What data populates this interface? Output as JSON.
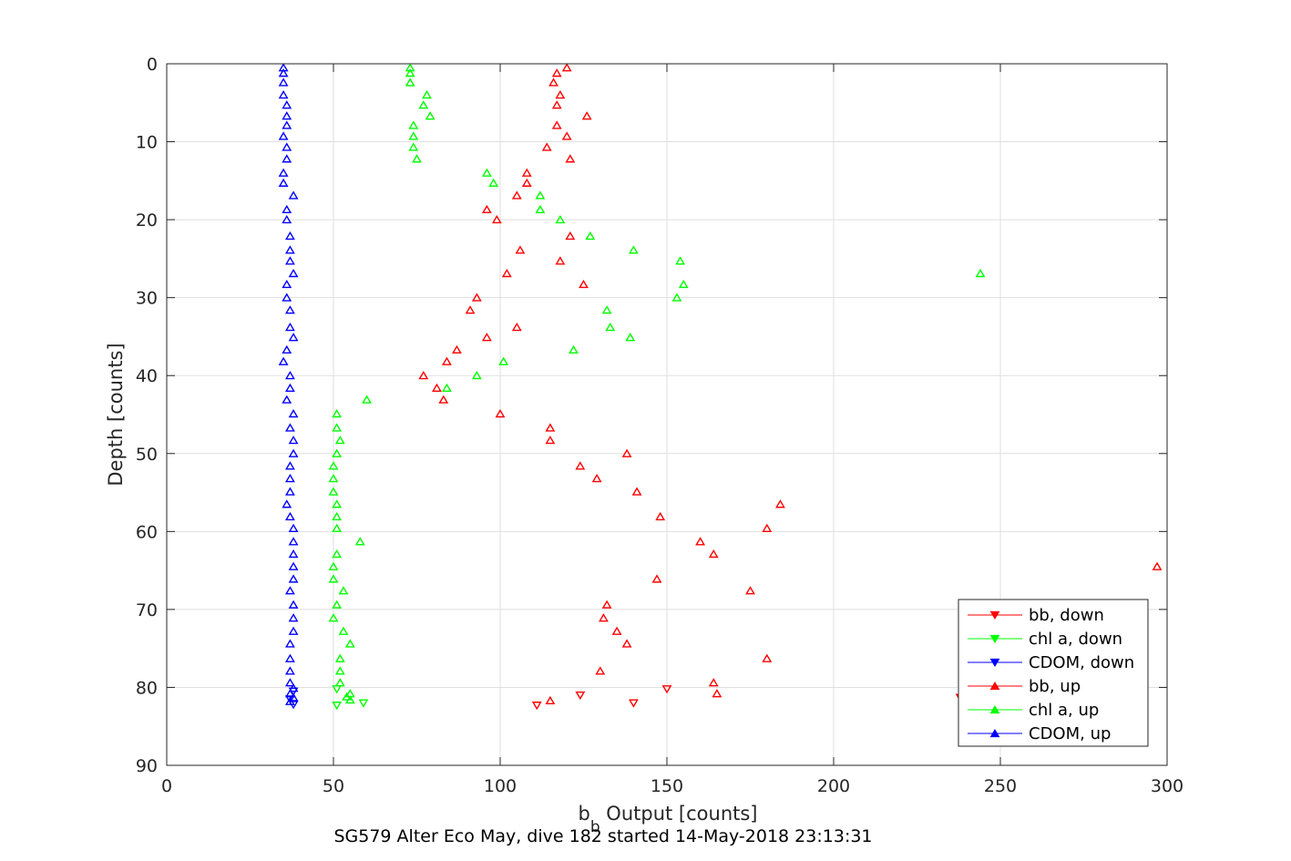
{
  "chart_data": {
    "type": "scatter",
    "xlabel_main": "b",
    "xlabel_sub": "b",
    "xlabel_rest": " Output [counts]",
    "ylabel": "Depth [counts]",
    "caption": "SG579 Alter Eco May, dive 182 started 14-May-2018 23:13:31",
    "xlim": [
      0,
      300
    ],
    "ylim": [
      0,
      90
    ],
    "y_reversed": true,
    "grid": true,
    "legend_position": "bottom-right",
    "x_ticks": [
      0,
      50,
      100,
      150,
      200,
      250,
      300
    ],
    "x_tick_labels": [
      "0",
      "50",
      "100",
      "150",
      "200",
      "250",
      "300"
    ],
    "y_ticks": [
      0,
      10,
      20,
      30,
      40,
      50,
      60,
      70,
      80,
      90
    ],
    "y_tick_labels": [
      "0",
      "10",
      "20",
      "30",
      "40",
      "50",
      "60",
      "70",
      "80",
      "90"
    ],
    "colors": {
      "bb": "#ff0000",
      "chl": "#00ff00",
      "cdom": "#0000ff"
    },
    "series": [
      {
        "name": "bb, down",
        "color": "#ff0000",
        "marker": "triangle-down",
        "points": [
          [
            140,
            82
          ],
          [
            111,
            82.3
          ],
          [
            150,
            80.2
          ],
          [
            124,
            81
          ],
          [
            238,
            81.3
          ]
        ]
      },
      {
        "name": "chl a, down",
        "color": "#00ff00",
        "marker": "triangle-down",
        "points": [
          [
            51,
            82.3
          ],
          [
            59,
            82
          ],
          [
            51,
            80.2
          ]
        ]
      },
      {
        "name": "CDOM, down",
        "color": "#0000ff",
        "marker": "triangle-down",
        "points": [
          [
            38,
            82.2
          ],
          [
            37,
            81.5
          ],
          [
            38,
            80.5
          ]
        ]
      },
      {
        "name": "bb, up",
        "color": "#ff0000",
        "marker": "triangle-up",
        "points": [
          [
            120,
            0.5
          ],
          [
            117,
            1.2
          ],
          [
            116,
            2.4
          ],
          [
            118,
            4
          ],
          [
            117,
            5.3
          ],
          [
            126,
            6.7
          ],
          [
            117,
            7.9
          ],
          [
            120,
            9.3
          ],
          [
            114,
            10.7
          ],
          [
            121,
            12.2
          ],
          [
            108,
            14
          ],
          [
            108,
            15.3
          ],
          [
            105,
            16.9
          ],
          [
            96,
            18.7
          ],
          [
            99,
            20
          ],
          [
            121,
            22.1
          ],
          [
            106,
            23.9
          ],
          [
            118,
            25.3
          ],
          [
            102,
            26.9
          ],
          [
            125,
            28.3
          ],
          [
            93,
            30
          ],
          [
            91,
            31.6
          ],
          [
            105,
            33.8
          ],
          [
            96,
            35.1
          ],
          [
            87,
            36.7
          ],
          [
            84,
            38.2
          ],
          [
            77,
            40
          ],
          [
            81,
            41.6
          ],
          [
            83,
            43.1
          ],
          [
            100,
            44.9
          ],
          [
            115,
            46.7
          ],
          [
            115,
            48.3
          ],
          [
            138,
            50
          ],
          [
            124,
            51.6
          ],
          [
            129,
            53.2
          ],
          [
            141,
            54.9
          ],
          [
            184,
            56.5
          ],
          [
            148,
            58.1
          ],
          [
            180,
            59.6
          ],
          [
            160,
            61.3
          ],
          [
            164,
            62.9
          ],
          [
            297,
            64.5
          ],
          [
            147,
            66.1
          ],
          [
            175,
            67.6
          ],
          [
            132,
            69.4
          ],
          [
            131,
            71.1
          ],
          [
            135,
            72.8
          ],
          [
            138,
            74.4
          ],
          [
            180,
            76.3
          ],
          [
            130,
            77.9
          ],
          [
            164,
            79.4
          ],
          [
            165,
            80.8
          ],
          [
            115,
            81.7
          ]
        ]
      },
      {
        "name": "chl a, up",
        "color": "#00ff00",
        "marker": "triangle-up",
        "points": [
          [
            73,
            0.5
          ],
          [
            73,
            1.2
          ],
          [
            73,
            2.4
          ],
          [
            78,
            4
          ],
          [
            77,
            5.3
          ],
          [
            79,
            6.7
          ],
          [
            74,
            7.9
          ],
          [
            74,
            9.3
          ],
          [
            74,
            10.7
          ],
          [
            75,
            12.2
          ],
          [
            96,
            14
          ],
          [
            98,
            15.3
          ],
          [
            112,
            16.9
          ],
          [
            112,
            18.7
          ],
          [
            118,
            20
          ],
          [
            127,
            22.1
          ],
          [
            140,
            23.9
          ],
          [
            154,
            25.3
          ],
          [
            244,
            26.9
          ],
          [
            155,
            28.3
          ],
          [
            153,
            30
          ],
          [
            132,
            31.6
          ],
          [
            133,
            33.8
          ],
          [
            139,
            35.1
          ],
          [
            122,
            36.7
          ],
          [
            101,
            38.2
          ],
          [
            93,
            40
          ],
          [
            84,
            41.6
          ],
          [
            60,
            43.1
          ],
          [
            51,
            44.9
          ],
          [
            51,
            46.7
          ],
          [
            52,
            48.3
          ],
          [
            51,
            50
          ],
          [
            50,
            51.6
          ],
          [
            50,
            53.2
          ],
          [
            50,
            54.9
          ],
          [
            51,
            56.5
          ],
          [
            51,
            58.1
          ],
          [
            51,
            59.6
          ],
          [
            58,
            61.3
          ],
          [
            51,
            62.9
          ],
          [
            50,
            64.5
          ],
          [
            50,
            66.1
          ],
          [
            53,
            67.6
          ],
          [
            51,
            69.4
          ],
          [
            50,
            71.1
          ],
          [
            53,
            72.8
          ],
          [
            55,
            74.4
          ],
          [
            52,
            76.3
          ],
          [
            52,
            77.9
          ],
          [
            52,
            79.4
          ],
          [
            55,
            80.8
          ],
          [
            54,
            81.2
          ],
          [
            55,
            81.6
          ]
        ]
      },
      {
        "name": "CDOM, up",
        "color": "#0000ff",
        "marker": "triangle-up",
        "points": [
          [
            35,
            0.5
          ],
          [
            35,
            1.2
          ],
          [
            35,
            2.4
          ],
          [
            35,
            4
          ],
          [
            36,
            5.3
          ],
          [
            36,
            6.7
          ],
          [
            36,
            7.9
          ],
          [
            35,
            9.3
          ],
          [
            36,
            10.7
          ],
          [
            36,
            12.2
          ],
          [
            35,
            14
          ],
          [
            35,
            15.3
          ],
          [
            38,
            16.9
          ],
          [
            36,
            18.7
          ],
          [
            36,
            20
          ],
          [
            37,
            22.1
          ],
          [
            37,
            23.9
          ],
          [
            37,
            25.3
          ],
          [
            38,
            26.9
          ],
          [
            36,
            28.3
          ],
          [
            36,
            30
          ],
          [
            37,
            31.6
          ],
          [
            37,
            33.8
          ],
          [
            38,
            35.1
          ],
          [
            36,
            36.7
          ],
          [
            35,
            38.2
          ],
          [
            37,
            40
          ],
          [
            37,
            41.6
          ],
          [
            36,
            43.1
          ],
          [
            38,
            44.9
          ],
          [
            37,
            46.7
          ],
          [
            38,
            48.3
          ],
          [
            38,
            50
          ],
          [
            37,
            51.6
          ],
          [
            37,
            53.2
          ],
          [
            37,
            54.9
          ],
          [
            36,
            56.5
          ],
          [
            37,
            58.1
          ],
          [
            38,
            59.6
          ],
          [
            38,
            61.3
          ],
          [
            38,
            62.9
          ],
          [
            38,
            64.5
          ],
          [
            38,
            66.1
          ],
          [
            37,
            67.6
          ],
          [
            38,
            69.4
          ],
          [
            38,
            71.1
          ],
          [
            38,
            72.8
          ],
          [
            37,
            74.4
          ],
          [
            37,
            76.3
          ],
          [
            37,
            77.9
          ],
          [
            37,
            79.4
          ],
          [
            38,
            80.1
          ],
          [
            37,
            80.8
          ],
          [
            38,
            81.3
          ],
          [
            37,
            81.8
          ]
        ]
      }
    ]
  }
}
